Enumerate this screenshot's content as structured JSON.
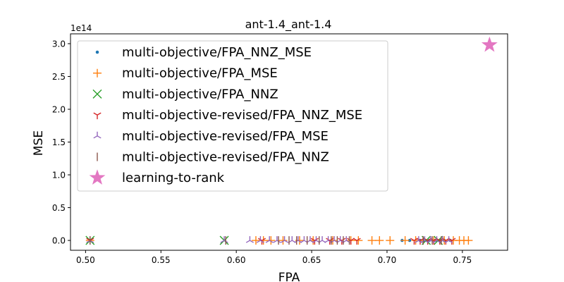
{
  "chart_data": {
    "type": "scatter",
    "title": "ant-1.4_ant-1.4",
    "xlabel": "FPA",
    "ylabel": "MSE",
    "y_multiplier": "1e14",
    "xlim": [
      0.49,
      0.78
    ],
    "ylim": [
      -0.15,
      3.15
    ],
    "xticks": [
      "0.50",
      "0.55",
      "0.60",
      "0.65",
      "0.70",
      "0.75"
    ],
    "xtick_values": [
      0.5,
      0.55,
      0.6,
      0.65,
      0.7,
      0.75
    ],
    "yticks": [
      "0.0",
      "0.5",
      "1.0",
      "1.5",
      "2.0",
      "2.5",
      "3.0"
    ],
    "ytick_values": [
      0.0,
      0.5,
      1.0,
      1.5,
      2.0,
      2.5,
      3.0
    ],
    "grid": false,
    "legend_position": "upper left",
    "series": [
      {
        "name": "multi-objective/FPA_NNZ_MSE",
        "marker": "dot",
        "color": "#1f77b4",
        "x": [
          0.503,
          0.71,
          0.715,
          0.722,
          0.725,
          0.728,
          0.732,
          0.735,
          0.738,
          0.742
        ],
        "y": [
          0,
          0,
          0,
          0,
          0,
          0,
          0,
          0,
          0,
          0
        ]
      },
      {
        "name": "multi-objective/FPA_MSE",
        "marker": "plus",
        "color": "#ff7f0e",
        "x": [
          0.503,
          0.613,
          0.618,
          0.623,
          0.631,
          0.642,
          0.651,
          0.664,
          0.676,
          0.681,
          0.69,
          0.695,
          0.702,
          0.712,
          0.719,
          0.724,
          0.731,
          0.738,
          0.744,
          0.748,
          0.751,
          0.754
        ],
        "y": [
          0,
          0,
          0,
          0,
          0,
          0,
          0,
          0,
          0,
          0,
          0,
          0,
          0,
          0,
          0,
          0,
          0,
          0,
          0,
          0,
          0,
          0
        ]
      },
      {
        "name": "multi-objective/FPA_NNZ",
        "marker": "x",
        "color": "#2ca02c",
        "x": [
          0.503,
          0.592,
          0.726,
          0.734
        ],
        "y": [
          0,
          0,
          0,
          0
        ]
      },
      {
        "name": "multi-objective-revised/FPA_NNZ_MSE",
        "marker": "tri_down",
        "color": "#d62728",
        "x": [
          0.503,
          0.617,
          0.652,
          0.662,
          0.67,
          0.676,
          0.68,
          0.718,
          0.722,
          0.727,
          0.731,
          0.735,
          0.739,
          0.743
        ],
        "y": [
          0,
          0,
          0,
          0,
          0,
          0,
          0,
          0,
          0,
          0,
          0,
          0,
          0,
          0
        ]
      },
      {
        "name": "multi-objective-revised/FPA_MSE",
        "marker": "tri_up",
        "color": "#9467bd",
        "x": [
          0.503,
          0.592,
          0.609,
          0.616,
          0.622,
          0.627,
          0.632,
          0.637,
          0.641,
          0.645,
          0.649,
          0.653,
          0.657,
          0.661,
          0.665,
          0.669,
          0.673,
          0.721,
          0.725,
          0.729,
          0.733,
          0.737,
          0.741
        ],
        "y": [
          0,
          0,
          0,
          0,
          0,
          0,
          0,
          0,
          0,
          0,
          0,
          0,
          0,
          0,
          0,
          0,
          0,
          0,
          0,
          0,
          0,
          0,
          0
        ]
      },
      {
        "name": "multi-objective-revised/FPA_NNZ",
        "marker": "vline",
        "color": "#8c564b",
        "x": [
          0.503,
          0.593,
          0.628,
          0.635,
          0.64,
          0.647,
          0.655,
          0.663,
          0.667,
          0.671,
          0.675,
          0.724,
          0.73,
          0.736
        ],
        "y": [
          0,
          0,
          0,
          0,
          0,
          0,
          0,
          0,
          0,
          0,
          0,
          0,
          0,
          0
        ]
      },
      {
        "name": "learning-to-rank",
        "marker": "star",
        "color": "#e377c2",
        "x": [
          0.768
        ],
        "y": [
          2.98
        ]
      }
    ]
  }
}
